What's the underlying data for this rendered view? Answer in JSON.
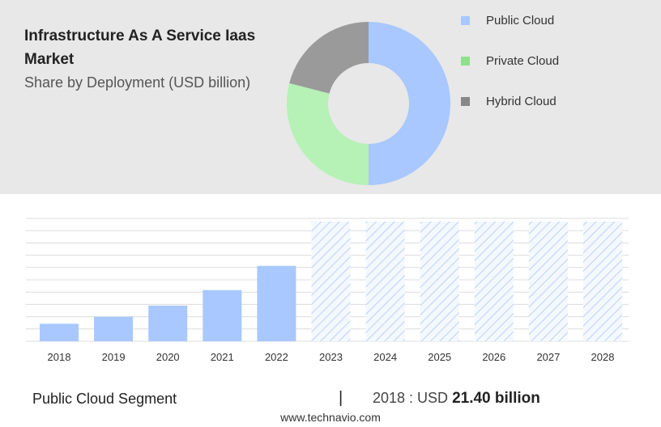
{
  "title": "Infrastructure As A Service Iaas Market",
  "subtitle": "Share by Deployment (USD billion)",
  "chart_data": [
    {
      "type": "pie",
      "title": "Infrastructure As A Service Iaas Market",
      "subtitle": "Share by Deployment (USD billion)",
      "series": [
        {
          "name": "Public Cloud",
          "value": 50,
          "color": "#a8c8ff"
        },
        {
          "name": "Private Cloud",
          "value": 29,
          "color": "#b6f1b6"
        },
        {
          "name": "Hybrid Cloud",
          "value": 21,
          "color": "#9a9a9a"
        }
      ],
      "legend_position": "right",
      "donut": true
    },
    {
      "type": "bar",
      "categories": [
        "2018",
        "2019",
        "2020",
        "2021",
        "2022",
        "2023",
        "2024",
        "2025",
        "2026",
        "2027",
        "2028"
      ],
      "values": [
        21.4,
        30.0,
        43.5,
        62.5,
        92.0,
        null,
        null,
        null,
        null,
        null,
        null
      ],
      "forecast_categories": [
        "2023",
        "2024",
        "2025",
        "2026",
        "2027",
        "2028"
      ],
      "ylim": [
        0,
        150
      ],
      "grid": true,
      "bar_color": "#a8c8ff"
    }
  ],
  "footer": {
    "segment": "Public Cloud Segment",
    "divider": "|",
    "year_label": "2018 : USD",
    "value_label": "21.40 billion",
    "website": "www.technavio.com"
  }
}
